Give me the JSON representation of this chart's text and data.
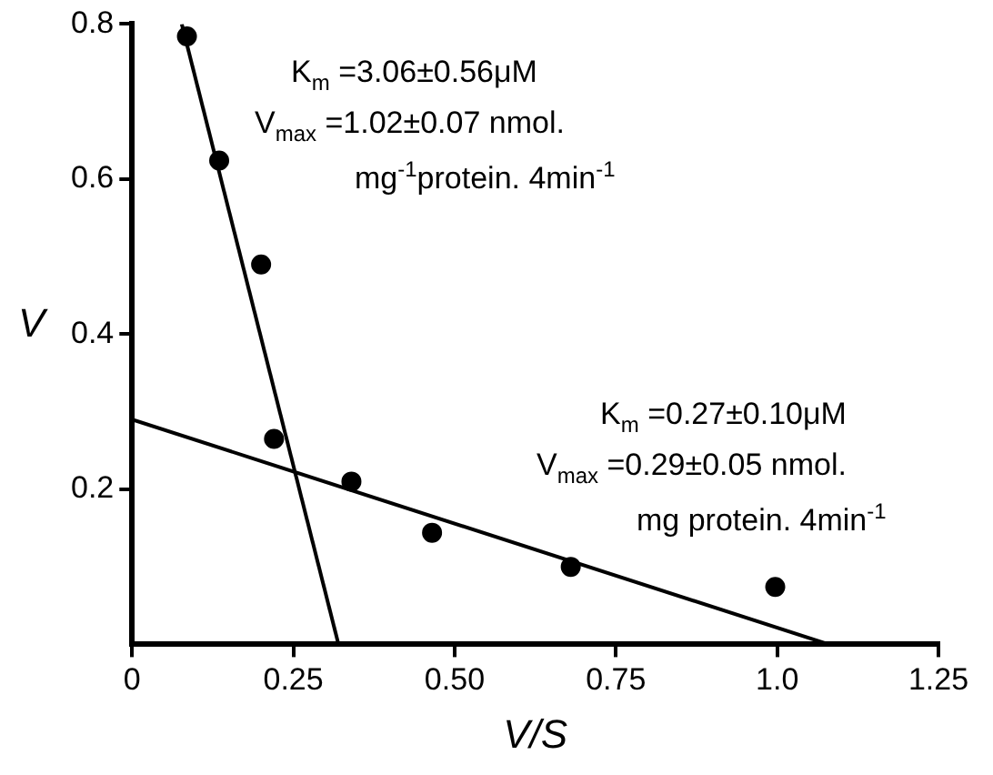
{
  "chart_data": {
    "type": "scatter",
    "xlabel": "V/S",
    "ylabel": "V",
    "xlim": [
      0,
      1.25
    ],
    "xticks": [
      0,
      0.25,
      {
        "value": 0.5,
        "label": "0.50"
      },
      0.75,
      {
        "value": 1.0,
        "label": "1.0"
      },
      1.25
    ],
    "ylim": [
      0,
      0.8
    ],
    "yticks": [
      0.2,
      0.4,
      0.6,
      0.8
    ],
    "grid": false,
    "legend": false,
    "marker": "circle",
    "series": [
      {
        "type": "scatter",
        "color": "#000000",
        "x": [
          0.085,
          0.135,
          0.2,
          0.22,
          0.34,
          0.465,
          0.68,
          0.997
        ],
        "values": [
          0.784,
          0.624,
          0.49,
          0.265,
          0.21,
          0.144,
          0.1,
          0.074
        ]
      },
      {
        "type": "line",
        "color": "#000000",
        "marker": "none",
        "x": [
          0.077,
          0.32
        ],
        "values": [
          0.8,
          0
        ]
      },
      {
        "type": "line",
        "color": "#000000",
        "marker": "none",
        "x": [
          0,
          1.08
        ],
        "values": [
          0.29,
          0
        ]
      }
    ],
    "annotations": [
      "K$_{m}$ =3.06±0.56μM",
      "V$_{max}$ =1.02±0.07 nmol.",
      "mg$^{-1}$protein. 4min$^{-1}$",
      "K$_{m}$ =0.27±0.10μM",
      "V$_{max}$ =0.29±0.05 nmol.",
      "mg protein. 4min$^{-1}$"
    ]
  }
}
